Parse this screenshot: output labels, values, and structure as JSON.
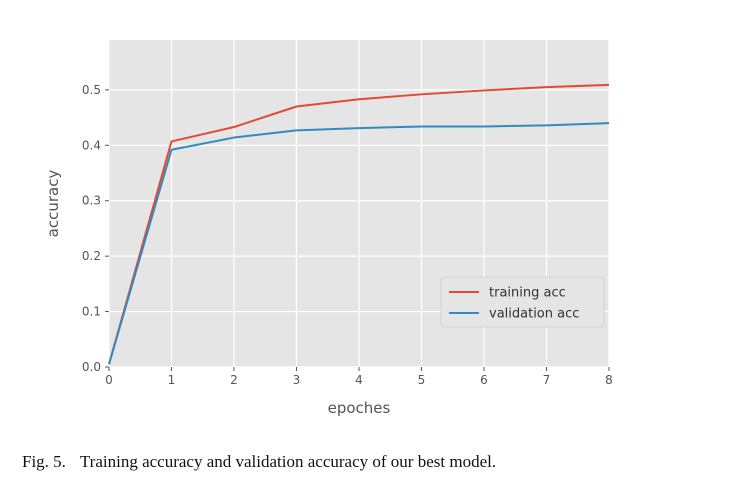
{
  "chart_data": {
    "type": "line",
    "x": [
      0,
      1,
      2,
      3,
      4,
      5,
      6,
      7,
      8
    ],
    "series": [
      {
        "name": "training acc",
        "color": "#e24a33",
        "values": [
          0.005,
          0.407,
          0.433,
          0.47,
          0.483,
          0.492,
          0.499,
          0.505,
          0.509
        ]
      },
      {
        "name": "validation acc",
        "color": "#348abd",
        "values": [
          0.005,
          0.392,
          0.414,
          0.427,
          0.431,
          0.434,
          0.434,
          0.436,
          0.44
        ]
      }
    ],
    "xlabel": "epoches",
    "ylabel": "accuracy",
    "xlim": [
      0,
      8
    ],
    "ylim": [
      0,
      0.59
    ],
    "xticks": [
      "0",
      "1",
      "2",
      "3",
      "4",
      "5",
      "6",
      "7",
      "8"
    ],
    "yticks": [
      "0.0",
      "0.1",
      "0.2",
      "0.3",
      "0.4",
      "0.5"
    ],
    "grid": true,
    "legend_position": "lower-right",
    "plot_background": "#e5e5e5"
  },
  "caption": {
    "label": "Fig. 5.",
    "text": "Training accuracy and validation accuracy of our best model."
  }
}
